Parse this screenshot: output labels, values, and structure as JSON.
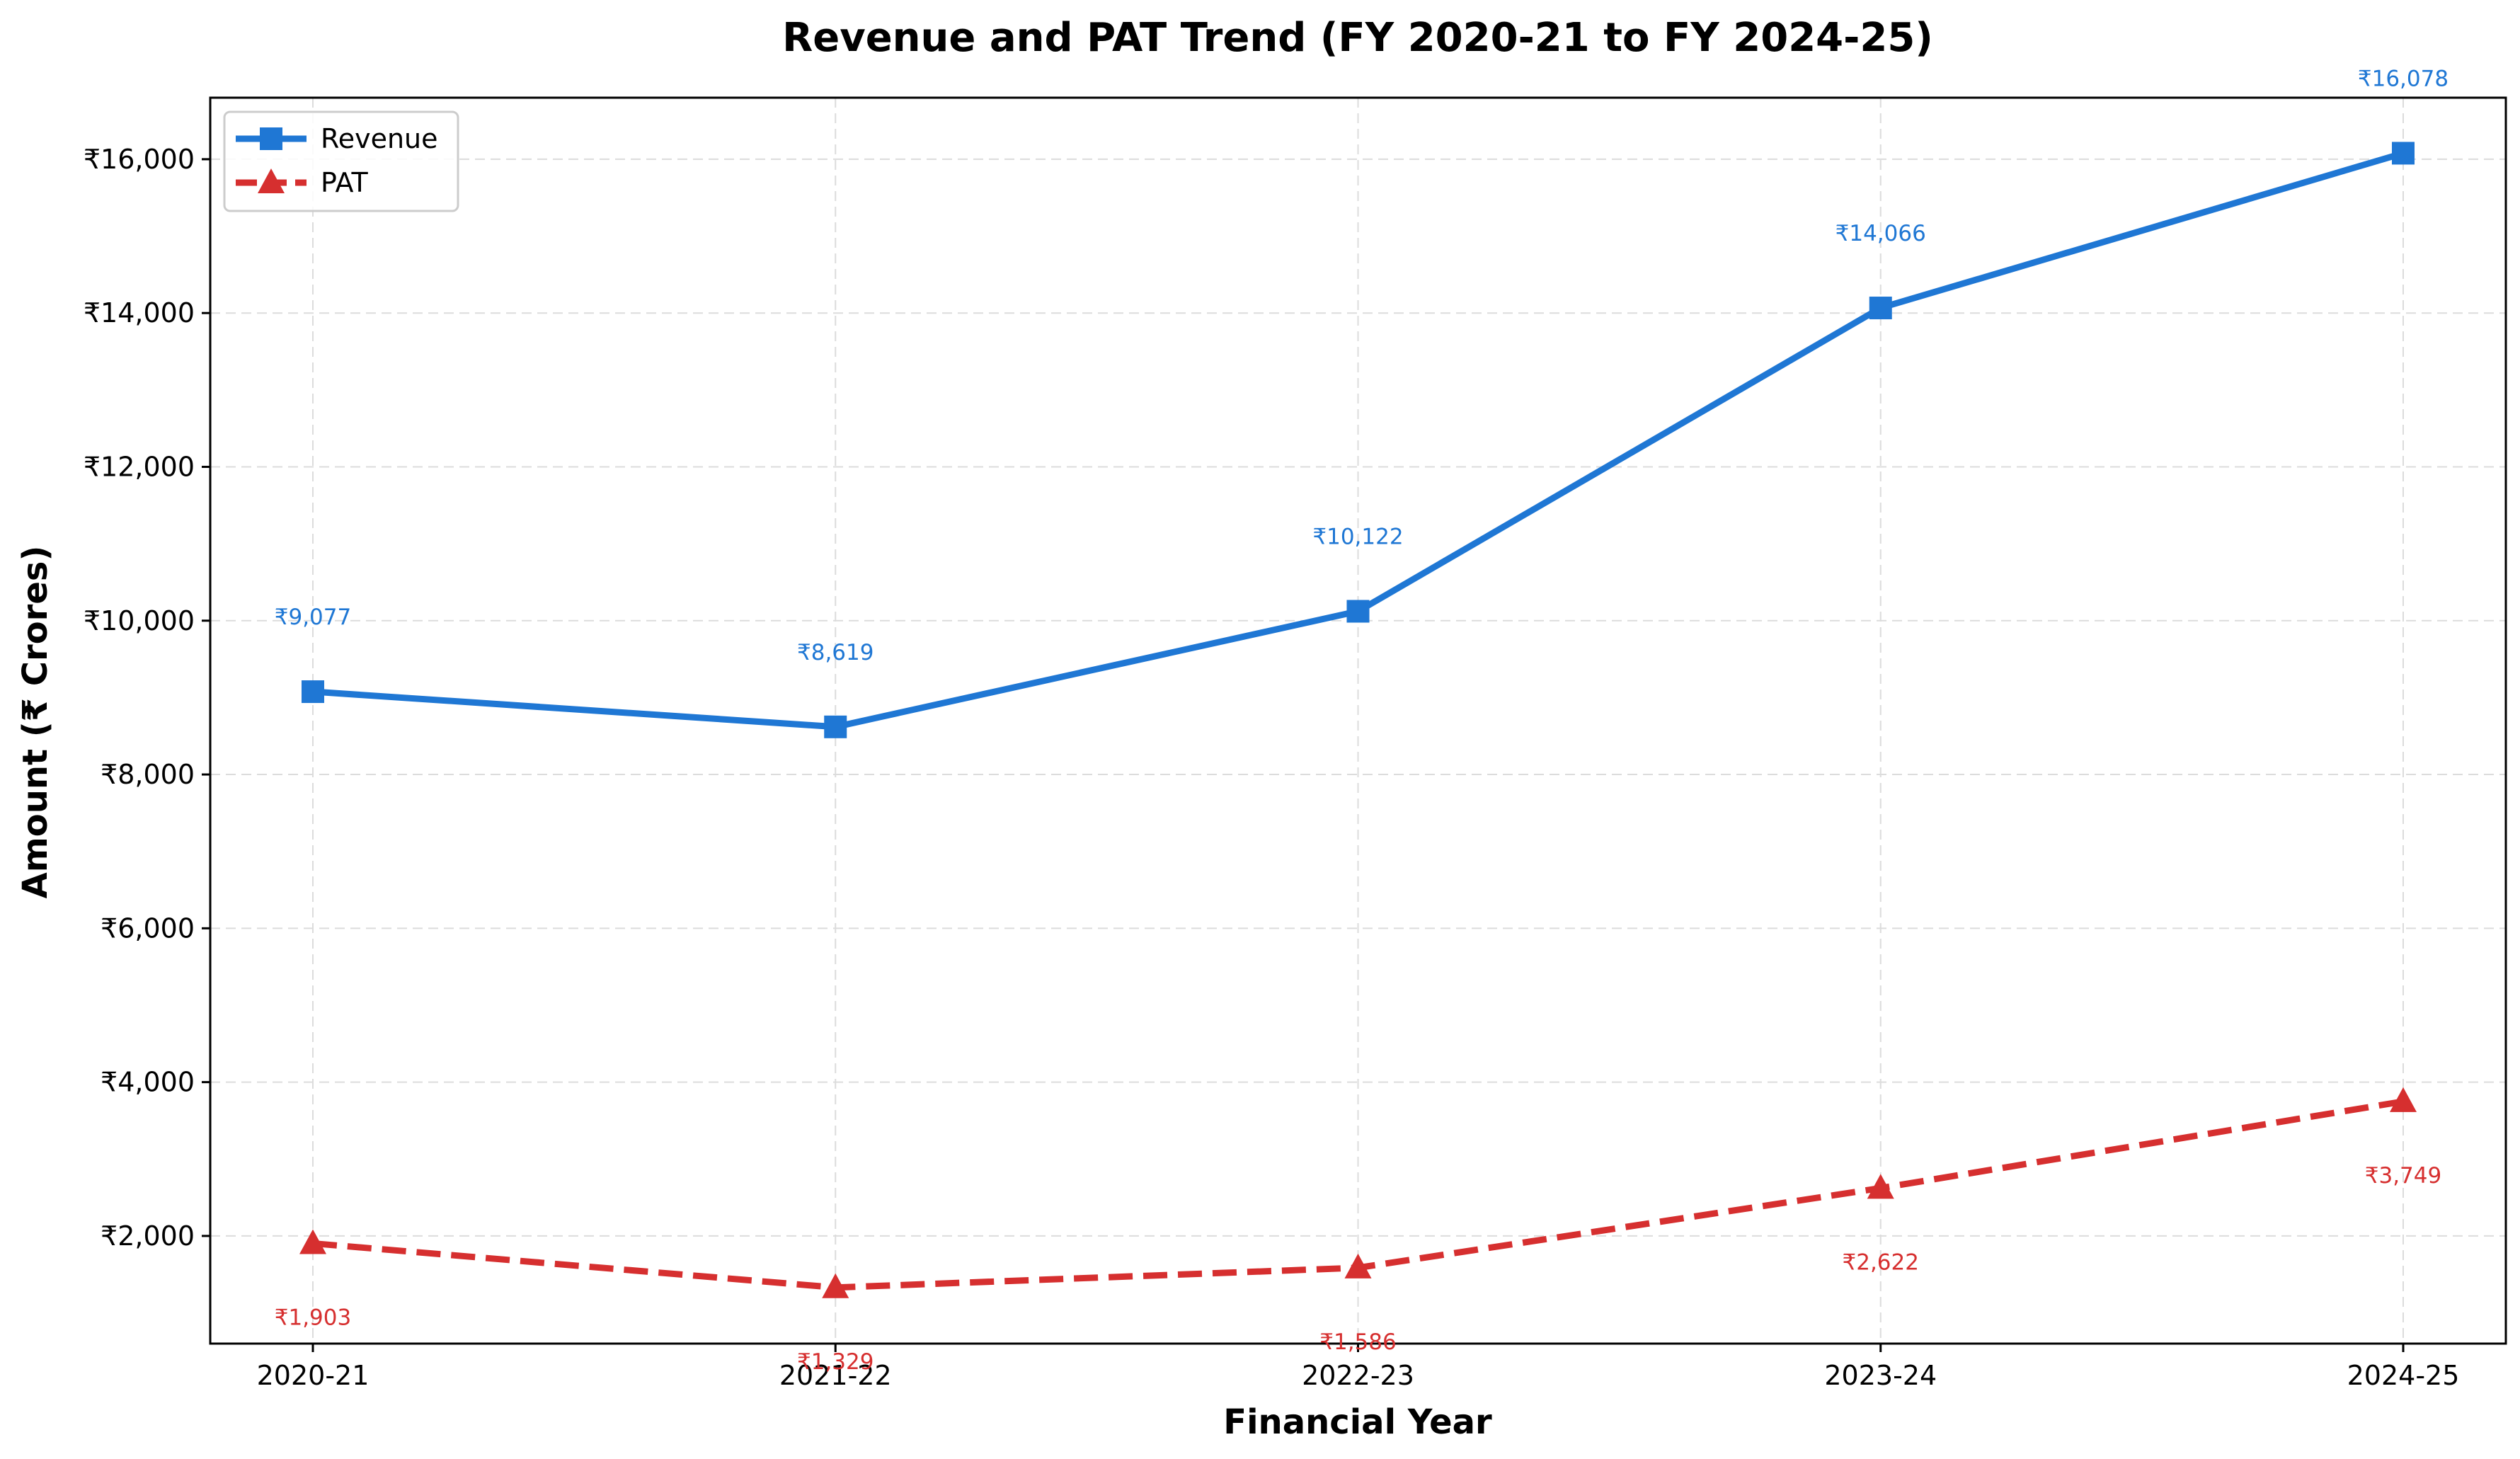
{
  "chart_data": {
    "type": "line",
    "title": "Revenue and PAT Trend (FY 2020-21 to FY 2024-25)",
    "xlabel": "Financial Year",
    "ylabel": "Amount (₹ Crores)",
    "categories": [
      "2020-21",
      "2021-22",
      "2022-23",
      "2023-24",
      "2024-25"
    ],
    "ylim": [
      600,
      16800
    ],
    "yticks": [
      2000,
      4000,
      6000,
      8000,
      10000,
      12000,
      14000,
      16000
    ],
    "ytick_labels": [
      "₹2,000",
      "₹4,000",
      "₹6,000",
      "₹8,000",
      "₹10,000",
      "₹12,000",
      "₹14,000",
      "₹16,000"
    ],
    "grid": true,
    "legend_position": "top-left",
    "series": [
      {
        "name": "Revenue",
        "values": [
          9077,
          8619,
          10122,
          14066,
          16078
        ],
        "labels": [
          "₹9,077",
          "₹8,619",
          "₹10,122",
          "₹14,066",
          "₹16,078"
        ],
        "color": "#1f77d4",
        "line_style": "solid",
        "marker": "square"
      },
      {
        "name": "PAT",
        "values": [
          1903,
          1329,
          1586,
          2622,
          3749
        ],
        "labels": [
          "₹1,903",
          "₹1,329",
          "₹1,586",
          "₹2,622",
          "₹3,749"
        ],
        "color": "#d62f2f",
        "line_style": "dashed",
        "marker": "triangle"
      }
    ]
  }
}
